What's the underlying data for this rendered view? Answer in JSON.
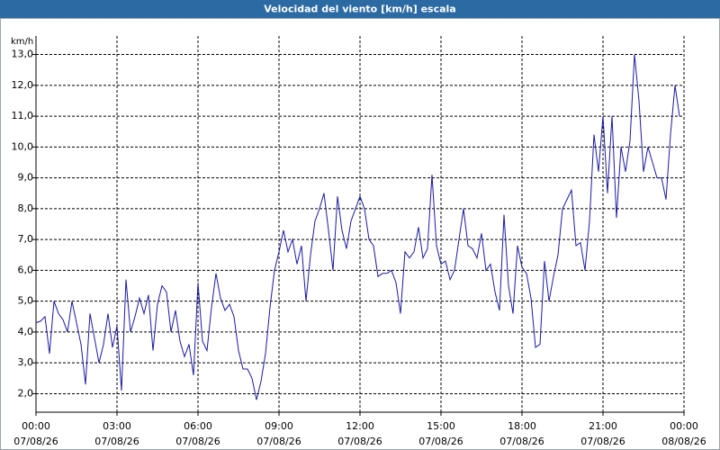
{
  "chart_data": {
    "type": "line",
    "title": "Velocidad del viento [km/h] escala",
    "ylabel": "km/h",
    "color": "#1a1aa0",
    "grid": true,
    "xlim": [
      0,
      1440
    ],
    "ylim": [
      1.4,
      13.6
    ],
    "yticks": [
      {
        "value": 2,
        "label": "2,0"
      },
      {
        "value": 3,
        "label": "3,0"
      },
      {
        "value": 4,
        "label": "4,0"
      },
      {
        "value": 5,
        "label": "5,0"
      },
      {
        "value": 6,
        "label": "6,0"
      },
      {
        "value": 7,
        "label": "7,0"
      },
      {
        "value": 8,
        "label": "8,0"
      },
      {
        "value": 9,
        "label": "9,0"
      },
      {
        "value": 10,
        "label": "10,0"
      },
      {
        "value": 11,
        "label": "11,0"
      },
      {
        "value": 12,
        "label": "12,0"
      },
      {
        "value": 13,
        "label": "13,0"
      }
    ],
    "xticks": [
      {
        "value": 0,
        "label": "00:00",
        "date": "07/08/26"
      },
      {
        "value": 180,
        "label": "03:00",
        "date": "07/08/26"
      },
      {
        "value": 360,
        "label": "06:00",
        "date": "07/08/26"
      },
      {
        "value": 540,
        "label": "09:00",
        "date": "07/08/26"
      },
      {
        "value": 720,
        "label": "12:00",
        "date": "07/08/26"
      },
      {
        "value": 900,
        "label": "15:00",
        "date": "07/08/26"
      },
      {
        "value": 1080,
        "label": "18:00",
        "date": "07/08/26"
      },
      {
        "value": 1260,
        "label": "21:00",
        "date": "07/08/26"
      },
      {
        "value": 1440,
        "label": "00:00",
        "date": "08/08/26"
      }
    ],
    "x": [
      0,
      10,
      20,
      30,
      40,
      50,
      60,
      70,
      80,
      90,
      100,
      110,
      120,
      130,
      140,
      150,
      160,
      170,
      180,
      190,
      200,
      210,
      220,
      230,
      240,
      250,
      260,
      270,
      280,
      290,
      300,
      310,
      320,
      330,
      340,
      350,
      360,
      370,
      380,
      390,
      400,
      410,
      420,
      430,
      440,
      450,
      460,
      470,
      480,
      490,
      500,
      510,
      520,
      530,
      540,
      550,
      560,
      570,
      580,
      590,
      600,
      610,
      620,
      630,
      640,
      650,
      660,
      670,
      680,
      690,
      700,
      710,
      720,
      730,
      740,
      750,
      760,
      770,
      780,
      790,
      800,
      810,
      820,
      830,
      840,
      850,
      860,
      870,
      880,
      890,
      900,
      910,
      920,
      930,
      940,
      950,
      960,
      970,
      980,
      990,
      1000,
      1010,
      1020,
      1030,
      1040,
      1050,
      1060,
      1070,
      1080,
      1090,
      1100,
      1110,
      1120,
      1130,
      1140,
      1150,
      1160,
      1170,
      1180,
      1190,
      1200,
      1210,
      1220,
      1230,
      1240,
      1250,
      1260,
      1270,
      1280,
      1290,
      1300,
      1310,
      1320,
      1330,
      1340,
      1350,
      1360,
      1370,
      1380,
      1390,
      1400,
      1410,
      1420,
      1430
    ],
    "values": [
      4.3,
      4.35,
      4.5,
      3.3,
      5.0,
      4.6,
      4.4,
      4.0,
      5.0,
      4.3,
      3.6,
      2.3,
      4.6,
      3.8,
      3.0,
      3.6,
      4.6,
      3.5,
      4.2,
      2.1,
      5.7,
      4.0,
      4.5,
      5.1,
      4.6,
      5.2,
      3.4,
      4.9,
      5.5,
      5.3,
      4.0,
      4.7,
      3.7,
      3.2,
      3.6,
      2.6,
      5.6,
      3.7,
      3.4,
      4.8,
      5.9,
      5.1,
      4.7,
      4.9,
      4.5,
      3.4,
      2.8,
      2.8,
      2.5,
      1.8,
      2.4,
      3.3,
      4.8,
      6.0,
      6.6,
      7.3,
      6.6,
      7.0,
      6.2,
      6.8,
      5.0,
      6.5,
      7.6,
      8.0,
      8.5,
      7.3,
      6.0,
      8.4,
      7.3,
      6.7,
      7.6,
      8.0,
      8.4,
      8.0,
      7.0,
      6.8,
      5.8,
      5.9,
      5.9,
      6.0,
      5.6,
      4.6,
      6.6,
      6.4,
      6.6,
      7.4,
      6.4,
      6.7,
      9.1,
      6.8,
      6.2,
      6.3,
      5.7,
      6.0,
      7.0,
      8.0,
      6.8,
      6.7,
      6.4,
      7.2,
      6.0,
      6.2,
      5.3,
      4.7,
      7.8,
      5.5,
      4.6,
      6.8,
      6.1,
      5.9,
      5.1,
      3.5,
      3.6,
      6.3,
      5.0,
      5.8,
      6.5,
      8.0,
      8.3,
      8.6,
      6.8,
      6.9,
      6.0,
      7.6,
      10.4,
      9.2,
      11.0,
      8.5,
      11.0,
      7.7,
      10.0,
      9.2,
      10.2,
      13.0,
      11.5,
      9.2,
      10.0,
      9.5,
      9.0,
      9.0,
      8.3,
      10.4,
      12.0,
      11.0
    ]
  }
}
